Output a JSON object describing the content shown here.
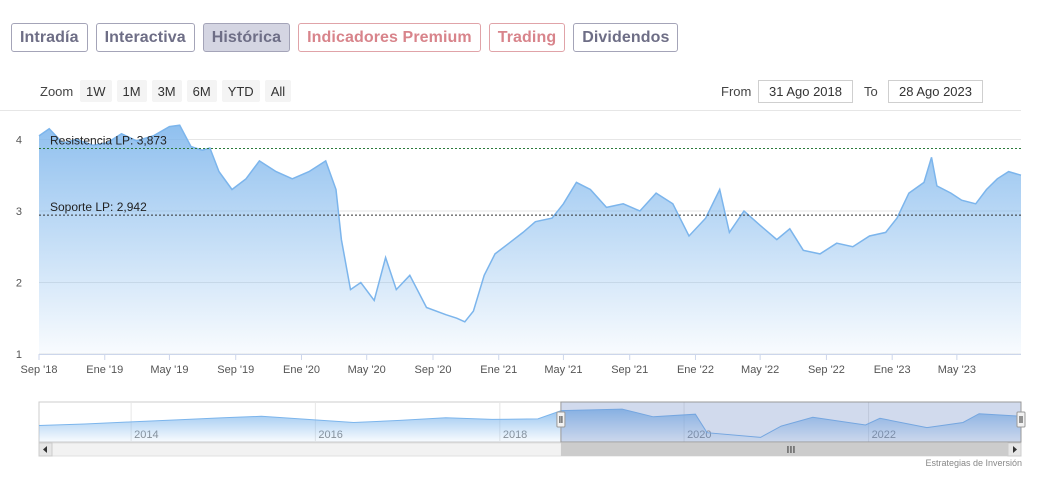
{
  "tabs": [
    {
      "label": "Intradía"
    },
    {
      "label": "Interactiva"
    },
    {
      "label": "Histórica"
    },
    {
      "label": "Indicadores Premium"
    },
    {
      "label": "Trading"
    },
    {
      "label": "Dividendos"
    }
  ],
  "zoom": {
    "label": "Zoom",
    "buttons": [
      "1W",
      "1M",
      "3M",
      "6M",
      "YTD",
      "All"
    ]
  },
  "range": {
    "from_label": "From",
    "from_value": "31 Ago 2018",
    "to_label": "To",
    "to_value": "28 Ago 2023"
  },
  "colors": {
    "line": "#7cb5ec",
    "area_top": "#7cb5ec",
    "resistance": "#2a7a3a",
    "support": "#333333",
    "navigator_mask": "#6685c2",
    "tab_active_bg": "#d4d5e2",
    "tab_premium": "#d8848b"
  },
  "chart_data": {
    "type": "area",
    "x_start": "2018-09-01",
    "x_end": "2023-08-28",
    "x_tick_labels": [
      "Sep '18",
      "Ene '19",
      "May '19",
      "Sep '19",
      "Ene '20",
      "May '20",
      "Sep '20",
      "Ene '21",
      "May '21",
      "Sep '21",
      "Ene '22",
      "May '22",
      "Sep '22",
      "Ene '23",
      "May '23"
    ],
    "y_tick_labels": [
      "1",
      "2",
      "3",
      "4"
    ],
    "ylim": [
      1,
      4.3
    ],
    "grid": true,
    "series": [
      {
        "values": [
          [
            "2018-09-01",
            4.05
          ],
          [
            "2018-09-20",
            4.15
          ],
          [
            "2018-10-15",
            3.95
          ],
          [
            "2018-11-10",
            4.0
          ],
          [
            "2018-12-10",
            3.92
          ],
          [
            "2019-01-05",
            3.95
          ],
          [
            "2019-02-01",
            4.08
          ],
          [
            "2019-03-01",
            3.98
          ],
          [
            "2019-04-01",
            4.05
          ],
          [
            "2019-05-01",
            4.18
          ],
          [
            "2019-05-20",
            4.2
          ],
          [
            "2019-06-10",
            3.9
          ],
          [
            "2019-07-01",
            3.85
          ],
          [
            "2019-07-15",
            3.88
          ],
          [
            "2019-08-01",
            3.55
          ],
          [
            "2019-08-25",
            3.3
          ],
          [
            "2019-09-20",
            3.45
          ],
          [
            "2019-10-15",
            3.7
          ],
          [
            "2019-11-15",
            3.55
          ],
          [
            "2019-12-15",
            3.45
          ],
          [
            "2020-01-15",
            3.55
          ],
          [
            "2020-02-15",
            3.7
          ],
          [
            "2020-03-05",
            3.3
          ],
          [
            "2020-03-15",
            2.6
          ],
          [
            "2020-04-01",
            1.9
          ],
          [
            "2020-04-20",
            2.0
          ],
          [
            "2020-05-15",
            1.75
          ],
          [
            "2020-06-05",
            2.35
          ],
          [
            "2020-06-25",
            1.9
          ],
          [
            "2020-07-20",
            2.1
          ],
          [
            "2020-08-20",
            1.65
          ],
          [
            "2020-09-25",
            1.55
          ],
          [
            "2020-10-15",
            1.5
          ],
          [
            "2020-10-30",
            1.45
          ],
          [
            "2020-11-15",
            1.6
          ],
          [
            "2020-12-05",
            2.1
          ],
          [
            "2020-12-25",
            2.4
          ],
          [
            "2021-01-20",
            2.55
          ],
          [
            "2021-02-15",
            2.7
          ],
          [
            "2021-03-10",
            2.85
          ],
          [
            "2021-04-10",
            2.9
          ],
          [
            "2021-05-01",
            3.1
          ],
          [
            "2021-05-25",
            3.4
          ],
          [
            "2021-06-20",
            3.3
          ],
          [
            "2021-07-20",
            3.05
          ],
          [
            "2021-08-20",
            3.1
          ],
          [
            "2021-09-20",
            3.0
          ],
          [
            "2021-10-20",
            3.25
          ],
          [
            "2021-11-20",
            3.1
          ],
          [
            "2021-12-20",
            2.65
          ],
          [
            "2022-01-20",
            2.9
          ],
          [
            "2022-02-15",
            3.3
          ],
          [
            "2022-03-05",
            2.7
          ],
          [
            "2022-04-01",
            3.0
          ],
          [
            "2022-05-01",
            2.8
          ],
          [
            "2022-06-01",
            2.6
          ],
          [
            "2022-06-25",
            2.75
          ],
          [
            "2022-07-20",
            2.45
          ],
          [
            "2022-08-20",
            2.4
          ],
          [
            "2022-09-20",
            2.55
          ],
          [
            "2022-10-20",
            2.5
          ],
          [
            "2022-11-20",
            2.65
          ],
          [
            "2022-12-20",
            2.7
          ],
          [
            "2023-01-10",
            2.9
          ],
          [
            "2023-02-01",
            3.25
          ],
          [
            "2023-03-01",
            3.4
          ],
          [
            "2023-03-15",
            3.75
          ],
          [
            "2023-03-25",
            3.35
          ],
          [
            "2023-04-20",
            3.25
          ],
          [
            "2023-05-10",
            3.15
          ],
          [
            "2023-06-05",
            3.1
          ],
          [
            "2023-06-25",
            3.3
          ],
          [
            "2023-07-15",
            3.45
          ],
          [
            "2023-08-05",
            3.55
          ],
          [
            "2023-08-28",
            3.5
          ]
        ]
      }
    ],
    "annotations": [
      {
        "label": "Resistencia LP: 3,873",
        "y": 3.873
      },
      {
        "label": "Soporte LP: 2,942",
        "y": 2.942
      }
    ]
  },
  "navigator": {
    "type": "area",
    "x_start": "2013-01-01",
    "x_end": "2023-08-28",
    "selected_from": "2018-08-31",
    "selected_to": "2023-08-28",
    "year_labels": [
      "2014",
      "2016",
      "2018",
      "2020",
      "2022"
    ],
    "values": [
      [
        "2013-01-01",
        2.6
      ],
      [
        "2013-07-01",
        2.75
      ],
      [
        "2014-01-01",
        2.95
      ],
      [
        "2014-07-01",
        3.15
      ],
      [
        "2015-01-01",
        3.35
      ],
      [
        "2015-06-01",
        3.5
      ],
      [
        "2015-12-01",
        3.2
      ],
      [
        "2016-06-01",
        2.9
      ],
      [
        "2016-12-01",
        3.1
      ],
      [
        "2017-06-01",
        3.35
      ],
      [
        "2017-12-01",
        3.2
      ],
      [
        "2018-06-01",
        3.25
      ],
      [
        "2018-09-01",
        4.05
      ],
      [
        "2019-05-01",
        4.2
      ],
      [
        "2019-09-01",
        3.45
      ],
      [
        "2020-02-15",
        3.7
      ],
      [
        "2020-04-01",
        1.9
      ],
      [
        "2020-10-30",
        1.45
      ],
      [
        "2021-01-20",
        2.55
      ],
      [
        "2021-05-25",
        3.4
      ],
      [
        "2021-12-20",
        2.65
      ],
      [
        "2022-02-15",
        3.3
      ],
      [
        "2022-08-20",
        2.4
      ],
      [
        "2023-01-10",
        2.9
      ],
      [
        "2023-03-15",
        3.75
      ],
      [
        "2023-08-28",
        3.5
      ]
    ]
  },
  "credits": "Estrategias de Inversión"
}
